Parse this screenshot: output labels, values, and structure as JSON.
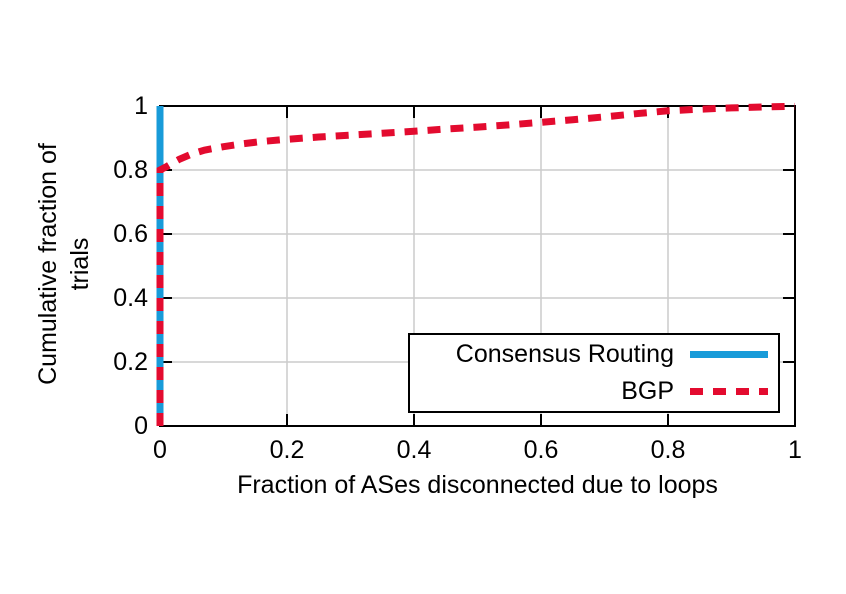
{
  "chart_data": {
    "type": "line",
    "title": "",
    "xlabel": "Fraction of ASes disconnected due to loops",
    "ylabel": "Cumulative fraction of trials",
    "ylabel_display": "Cumulative fraction of\ntrials",
    "xlim": [
      0,
      1
    ],
    "ylim": [
      0,
      1
    ],
    "grid": true,
    "legend_position": "bottom-right-inside",
    "xticks": [
      0,
      0.2,
      0.4,
      0.6,
      0.8,
      1
    ],
    "yticks": [
      0,
      0.2,
      0.4,
      0.6,
      0.8,
      1
    ],
    "xtick_labels": [
      "0",
      "0.2",
      "0.4",
      "0.6",
      "0.8",
      "1"
    ],
    "ytick_labels": [
      "0",
      "0.2",
      "0.4",
      "0.6",
      "0.8",
      "1"
    ],
    "colors": {
      "grid": "#cccccc",
      "axis": "#000000",
      "background": "#ffffff"
    },
    "series": [
      {
        "name": "Consensus Routing",
        "color": "#189bd9",
        "style": "solid",
        "points": [
          [
            0,
            0
          ],
          [
            0,
            1
          ]
        ]
      },
      {
        "name": "BGP",
        "color": "#e30b2f",
        "style": "dashed",
        "points": [
          [
            0,
            0
          ],
          [
            0,
            0.8
          ],
          [
            0.01,
            0.81
          ],
          [
            0.02,
            0.822
          ],
          [
            0.03,
            0.833
          ],
          [
            0.05,
            0.85
          ],
          [
            0.07,
            0.862
          ],
          [
            0.1,
            0.873
          ],
          [
            0.13,
            0.882
          ],
          [
            0.16,
            0.889
          ],
          [
            0.2,
            0.896
          ],
          [
            0.25,
            0.903
          ],
          [
            0.3,
            0.909
          ],
          [
            0.35,
            0.915
          ],
          [
            0.4,
            0.921
          ],
          [
            0.45,
            0.928
          ],
          [
            0.5,
            0.934
          ],
          [
            0.55,
            0.941
          ],
          [
            0.6,
            0.949
          ],
          [
            0.65,
            0.957
          ],
          [
            0.7,
            0.966
          ],
          [
            0.75,
            0.976
          ],
          [
            0.8,
            0.985
          ],
          [
            0.85,
            0.99
          ],
          [
            0.9,
            0.994
          ],
          [
            0.95,
            0.997
          ],
          [
            1.0,
            0.999
          ]
        ]
      }
    ]
  }
}
